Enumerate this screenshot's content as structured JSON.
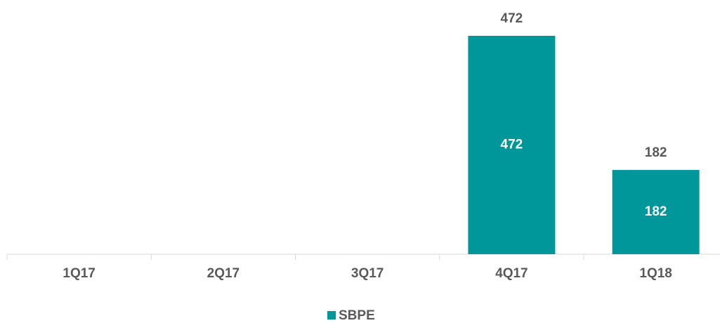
{
  "chart_data": {
    "type": "bar",
    "categories": [
      "1Q17",
      "2Q17",
      "3Q17",
      "4Q17",
      "1Q18"
    ],
    "series": [
      {
        "name": "SBPE",
        "color": "#00979b",
        "values": [
          null,
          null,
          null,
          472,
          182
        ]
      }
    ],
    "legend": "bottom"
  }
}
